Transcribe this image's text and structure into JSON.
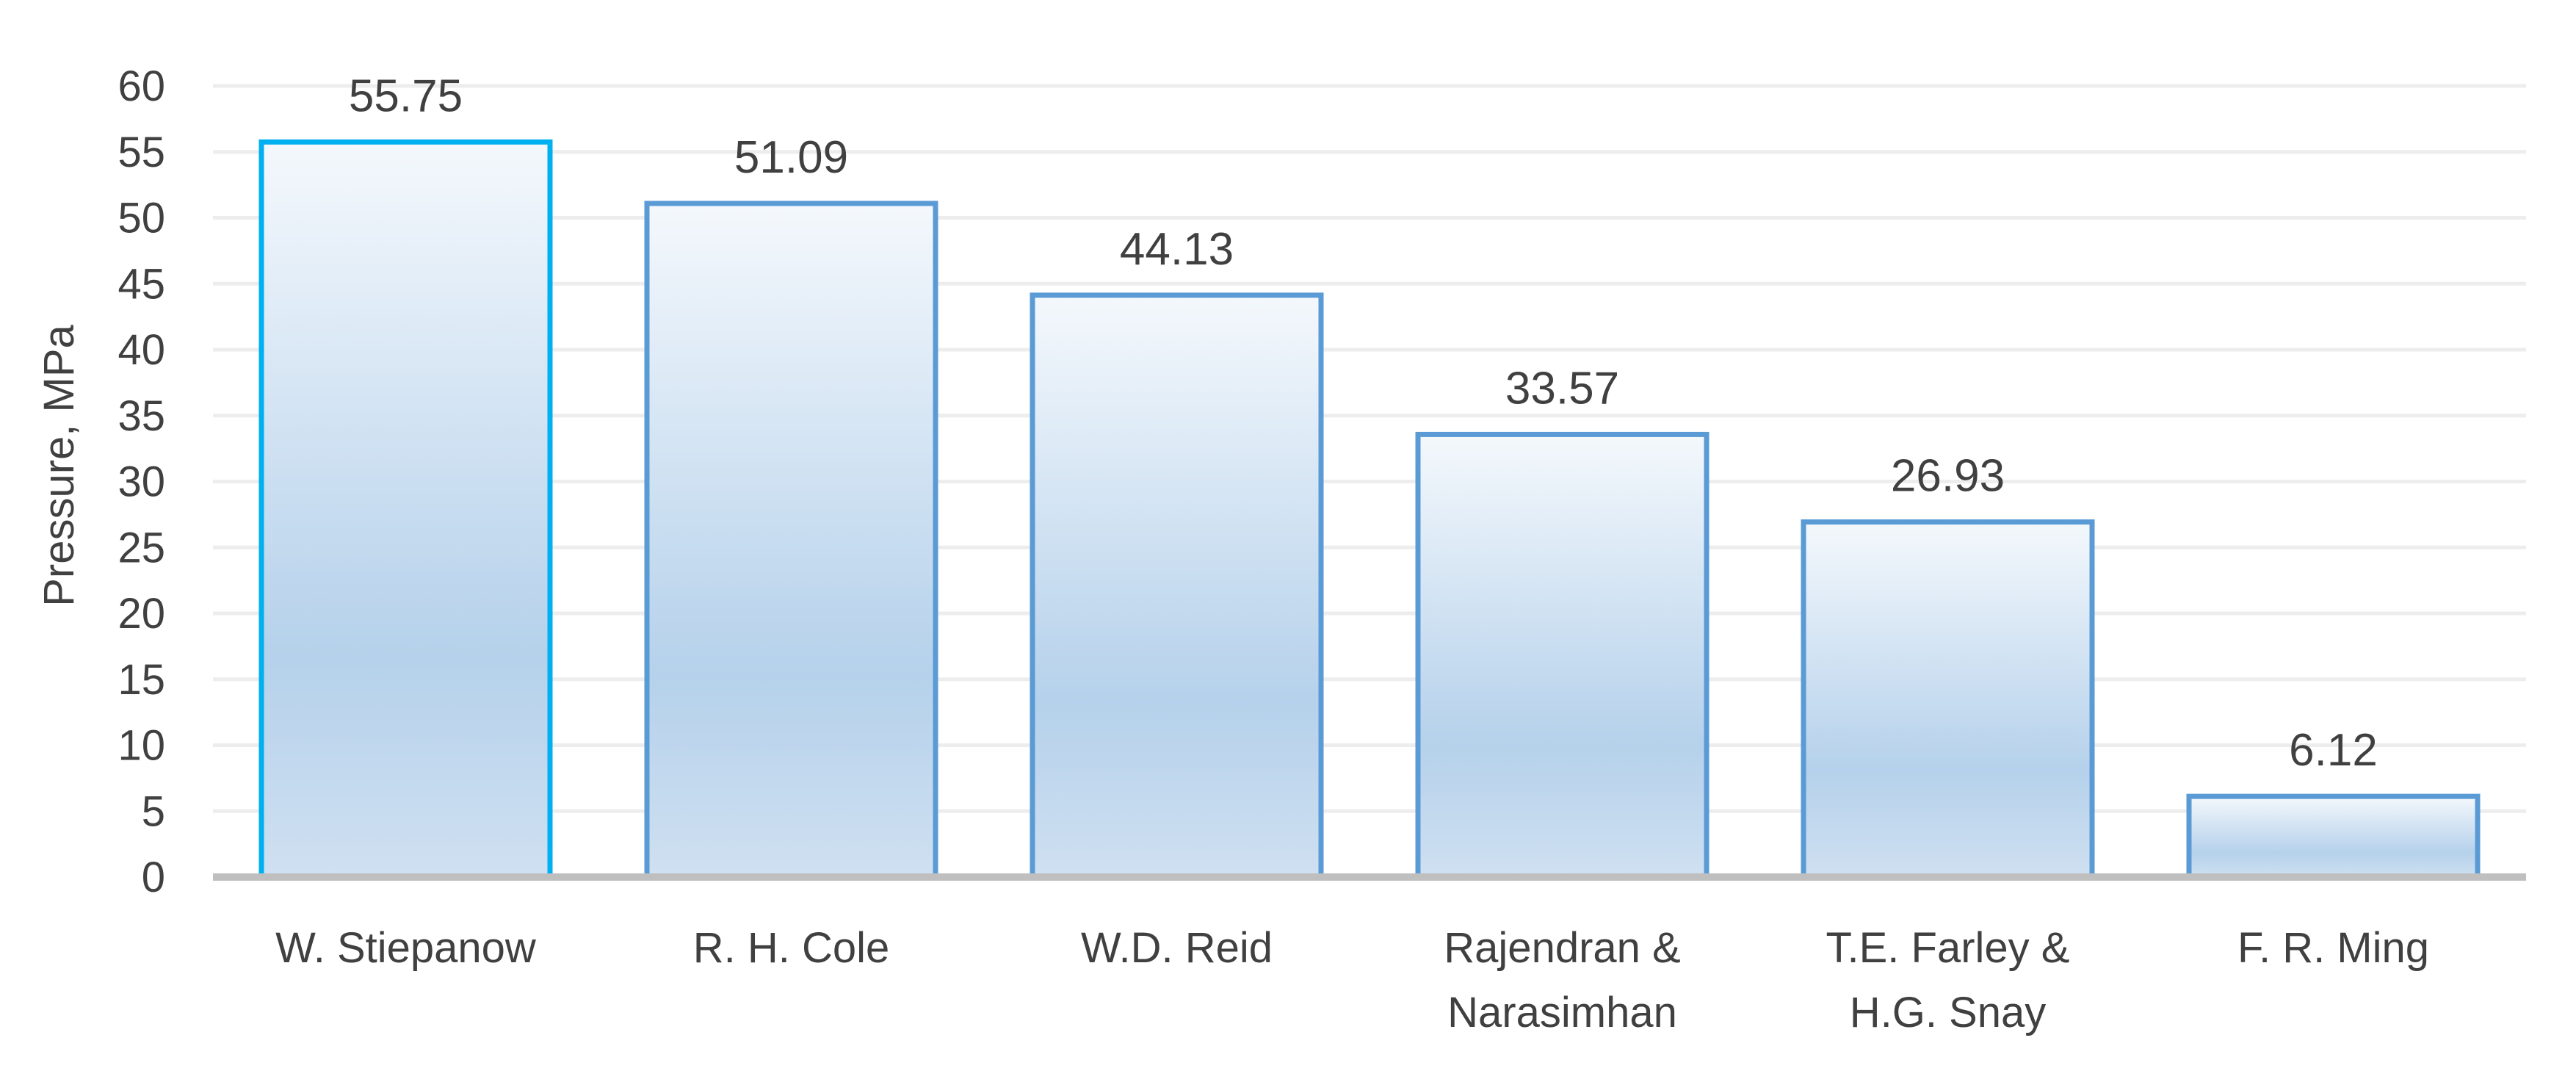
{
  "chart_data": {
    "type": "bar",
    "title": "",
    "xlabel": "",
    "ylabel": "Pressure, MPa",
    "ylim": [
      0,
      60
    ],
    "y_ticks": [
      "0",
      "5",
      "10",
      "15",
      "20",
      "25",
      "30",
      "35",
      "40",
      "45",
      "50",
      "55",
      "60"
    ],
    "grid": true,
    "legend": "none",
    "categories": [
      [
        "W. Stiepanow"
      ],
      [
        "R. H. Cole"
      ],
      [
        "W.D. Reid"
      ],
      [
        "Rajendran &",
        "Narasimhan"
      ],
      [
        "T.E. Farley &",
        "H.G. Snay"
      ],
      [
        "F. R. Ming"
      ]
    ],
    "values": [
      55.75,
      51.09,
      44.13,
      33.57,
      26.93,
      6.12
    ],
    "data_labels": [
      "55.75",
      "51.09",
      "44.13",
      "33.57",
      "26.93",
      "6.12"
    ],
    "colors": {
      "bar_top": "#f4f8fc",
      "bar_mid": "#b5d1eb",
      "bar_bottom": "#cfe0f1",
      "bar_border": "#5b9bd5",
      "bar_border_highlight": "#00b0f0",
      "gridline": "#ededed",
      "axis_line": "#bfbfbf",
      "text": "#404040"
    }
  }
}
